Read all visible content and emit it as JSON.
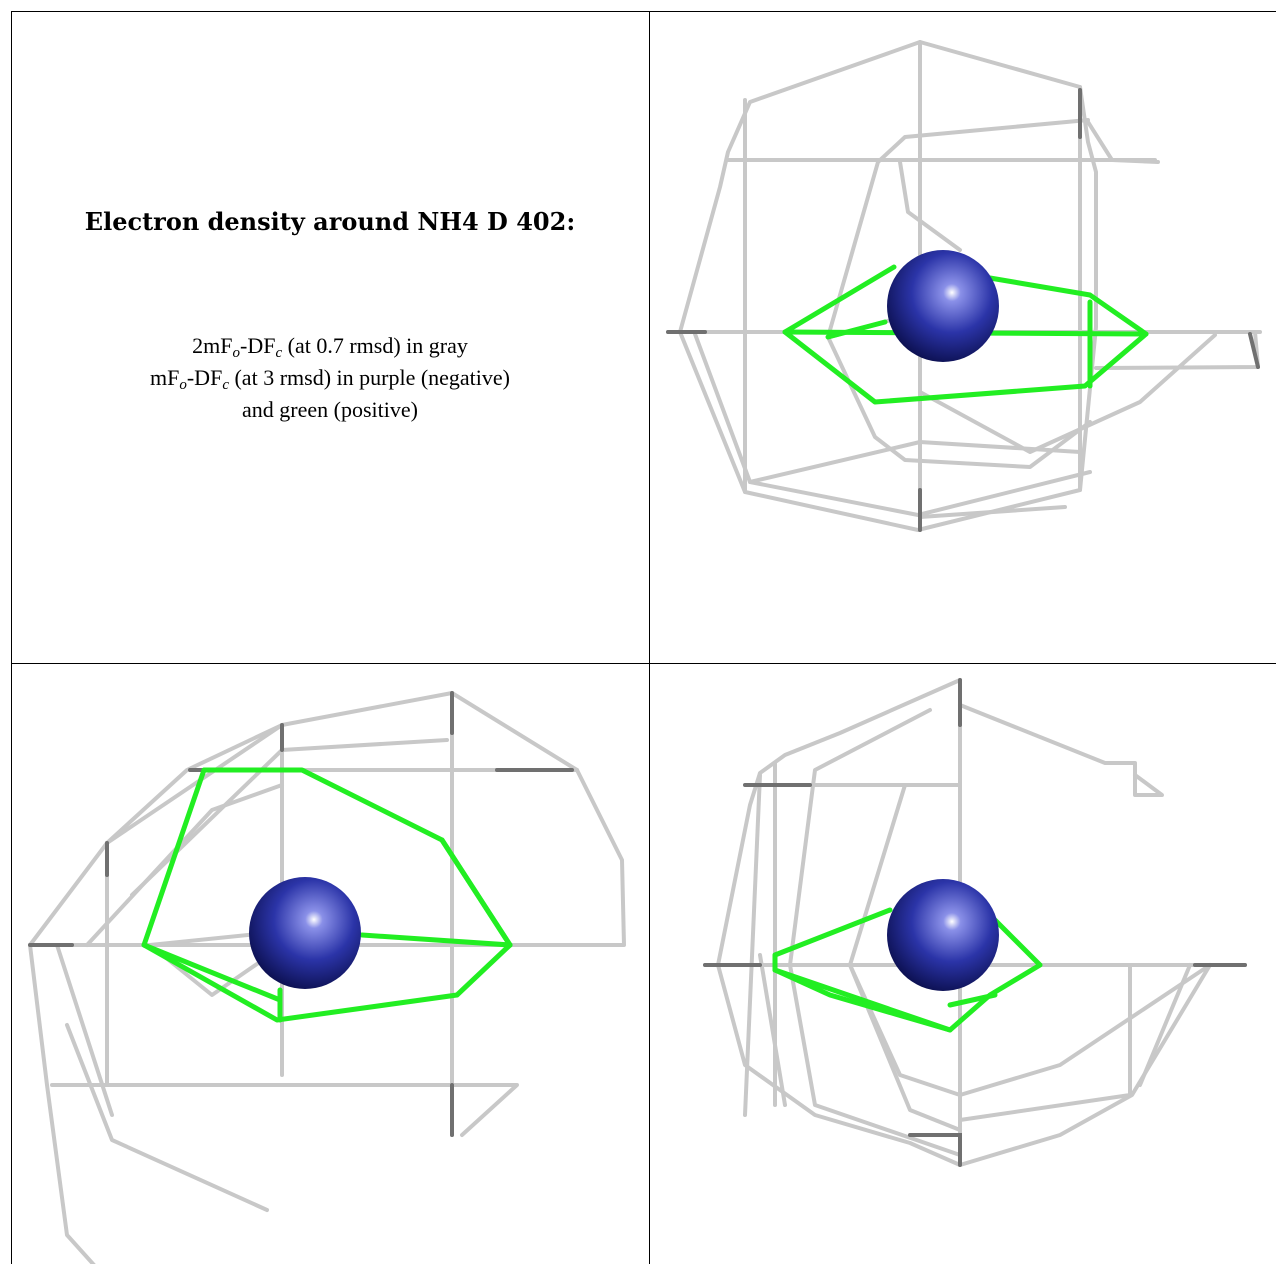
{
  "title": "Electron density around NH4 D 402:",
  "legend": {
    "line1": {
      "a": "2mF",
      "sub1": "o",
      "b": "-DF",
      "sub2": "c",
      "c": " (at 0.7 rmsd) in gray"
    },
    "line2": {
      "a": "mF",
      "sub1": "o",
      "b": "-DF",
      "sub2": "c",
      "c": " (at 3 rmsd) in purple (negative)"
    },
    "line3": "and green (positive)"
  },
  "colors": {
    "map_2fofc": "#c8c8c8",
    "map_fofc_positive": "#22ee22",
    "map_fofc_negative": "#9b30c8",
    "atom_nh4": "#2b34a8",
    "border": "#000000"
  }
}
